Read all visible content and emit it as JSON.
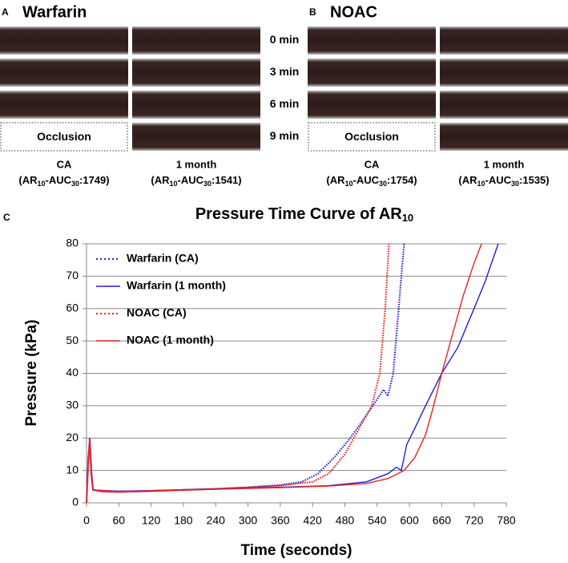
{
  "panel_a": {
    "label": "A",
    "title": "Warfarin",
    "occlusion": "Occlusion",
    "columns": [
      {
        "name": "CA",
        "prefix": "(AR",
        "sub1": "10",
        "mid": "-AUC",
        "sub2": "30",
        "suffix": ":1749)"
      },
      {
        "name": "1 month",
        "prefix": "(AR",
        "sub1": "10",
        "mid": "-AUC",
        "sub2": "30",
        "suffix": ":1541)"
      }
    ]
  },
  "panel_b": {
    "label": "B",
    "title": "NOAC",
    "occlusion": "Occlusion",
    "columns": [
      {
        "name": "CA",
        "prefix": "(AR",
        "sub1": "10",
        "mid": "-AUC",
        "sub2": "30",
        "suffix": ":1754)"
      },
      {
        "name": "1 month",
        "prefix": "(AR",
        "sub1": "10",
        "mid": "-AUC",
        "sub2": "30",
        "suffix": ":1535)"
      }
    ]
  },
  "times": [
    "0 min",
    "3 min",
    "6 min",
    "9 min"
  ],
  "chart_data": {
    "type": "line",
    "panel_label": "C",
    "title": "Pressure Time Curve of AR",
    "title_sub": "10",
    "x_label": "Time (seconds)",
    "y_label": "Pressure (kPa)",
    "xlim": [
      0,
      780
    ],
    "xticks": [
      0,
      60,
      120,
      180,
      240,
      300,
      360,
      420,
      480,
      540,
      600,
      660,
      720,
      780
    ],
    "ylim": [
      0,
      80
    ],
    "yticks": [
      0,
      10,
      20,
      30,
      40,
      50,
      60,
      70,
      80
    ],
    "grid": true,
    "legend": "upper left",
    "series": [
      {
        "name": "Warfarin (CA)",
        "color": "#2020d0",
        "line_style": "dotted",
        "x": [
          0,
          3,
          6,
          9,
          12,
          30,
          60,
          120,
          180,
          240,
          300,
          360,
          400,
          430,
          460,
          490,
          520,
          540,
          552,
          560,
          570,
          580,
          590
        ],
        "values": [
          0,
          12,
          20,
          10,
          4,
          3.6,
          3.5,
          3.7,
          4,
          4.3,
          4.8,
          5.5,
          6.5,
          9,
          14,
          20,
          27,
          32,
          35,
          33,
          40,
          60,
          80
        ]
      },
      {
        "name": "Warfarin (1 month)",
        "color": "#2020d0",
        "line_style": "solid",
        "x": [
          0,
          3,
          6,
          9,
          12,
          60,
          120,
          240,
          360,
          450,
          520,
          560,
          576,
          585,
          595,
          610,
          630,
          660,
          690,
          720,
          740,
          765
        ],
        "values": [
          0,
          14,
          19,
          8,
          4,
          3.6,
          3.8,
          4.3,
          4.8,
          5.3,
          6.5,
          9,
          11,
          10,
          18,
          23,
          30,
          40,
          48,
          60,
          68,
          80
        ]
      },
      {
        "name": "NOAC (CA)",
        "color": "#e82020",
        "line_style": "dotted",
        "x": [
          0,
          3,
          6,
          9,
          12,
          30,
          60,
          120,
          180,
          240,
          300,
          360,
          420,
          450,
          480,
          500,
          530,
          545,
          555,
          562
        ],
        "values": [
          0,
          10,
          19,
          9,
          4,
          3.4,
          3.3,
          3.6,
          4,
          4.3,
          4.7,
          5.3,
          6.5,
          9,
          15,
          21,
          30,
          40,
          60,
          80
        ]
      },
      {
        "name": "NOAC (1 month)",
        "color": "#e82020",
        "line_style": "solid",
        "x": [
          0,
          3,
          6,
          9,
          12,
          60,
          120,
          240,
          360,
          450,
          520,
          560,
          590,
          610,
          630,
          645,
          660,
          680,
          700,
          720,
          734
        ],
        "values": [
          0,
          12,
          20,
          9,
          4,
          3.5,
          3.7,
          4.2,
          4.7,
          5.2,
          6,
          7.5,
          10,
          14,
          21,
          30,
          40,
          52,
          64,
          74,
          80
        ]
      }
    ]
  }
}
